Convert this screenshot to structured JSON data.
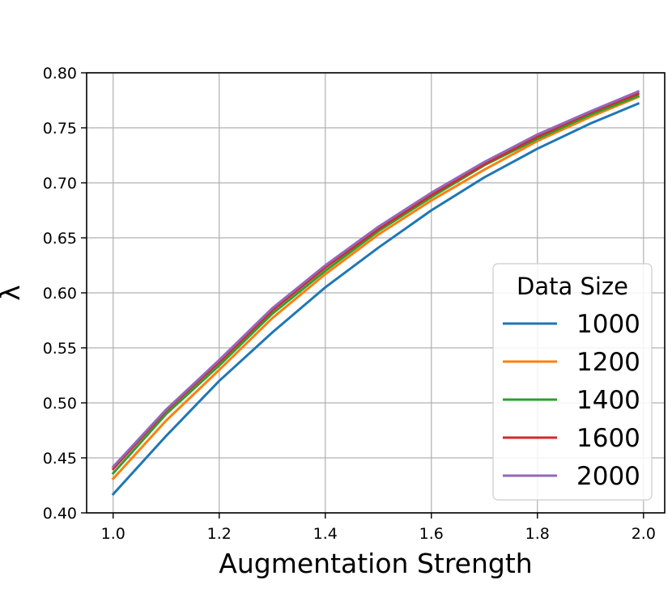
{
  "chart_data": {
    "type": "line",
    "title": "",
    "xlabel": "Augmentation Strength",
    "ylabel": "λ",
    "xlim": [
      0.95,
      2.04
    ],
    "ylim": [
      0.4,
      0.8
    ],
    "xticks": [
      1.0,
      1.2,
      1.4,
      1.6,
      1.8,
      2.0
    ],
    "yticks": [
      0.4,
      0.45,
      0.5,
      0.55,
      0.6,
      0.65,
      0.7,
      0.75,
      0.8
    ],
    "xtick_labels": [
      "1.0",
      "1.2",
      "1.4",
      "1.6",
      "1.8",
      "2.0"
    ],
    "ytick_labels": [
      "0.40",
      "0.45",
      "0.50",
      "0.55",
      "0.60",
      "0.65",
      "0.70",
      "0.75",
      "0.80"
    ],
    "grid": true,
    "legend": {
      "title": "Data Size",
      "position": "lower-right"
    },
    "x": [
      1.0,
      1.1,
      1.2,
      1.3,
      1.4,
      1.5,
      1.6,
      1.7,
      1.8,
      1.9,
      1.99
    ],
    "series": [
      {
        "name": "1000",
        "color": "#1f77b4",
        "values": [
          0.417,
          0.47,
          0.52,
          0.564,
          0.605,
          0.641,
          0.675,
          0.705,
          0.731,
          0.754,
          0.772
        ]
      },
      {
        "name": "1200",
        "color": "#ff7f0e",
        "values": [
          0.431,
          0.484,
          0.53,
          0.577,
          0.617,
          0.653,
          0.684,
          0.712,
          0.738,
          0.76,
          0.778
        ]
      },
      {
        "name": "1400",
        "color": "#2ca02c",
        "values": [
          0.436,
          0.49,
          0.534,
          0.581,
          0.62,
          0.656,
          0.687,
          0.716,
          0.74,
          0.762,
          0.779
        ]
      },
      {
        "name": "1600",
        "color": "#d62728",
        "values": [
          0.44,
          0.493,
          0.537,
          0.584,
          0.623,
          0.658,
          0.689,
          0.717,
          0.742,
          0.764,
          0.781
        ]
      },
      {
        "name": "2000",
        "color": "#9467bd",
        "values": [
          0.442,
          0.494,
          0.539,
          0.586,
          0.625,
          0.66,
          0.691,
          0.719,
          0.744,
          0.765,
          0.783
        ]
      }
    ]
  }
}
